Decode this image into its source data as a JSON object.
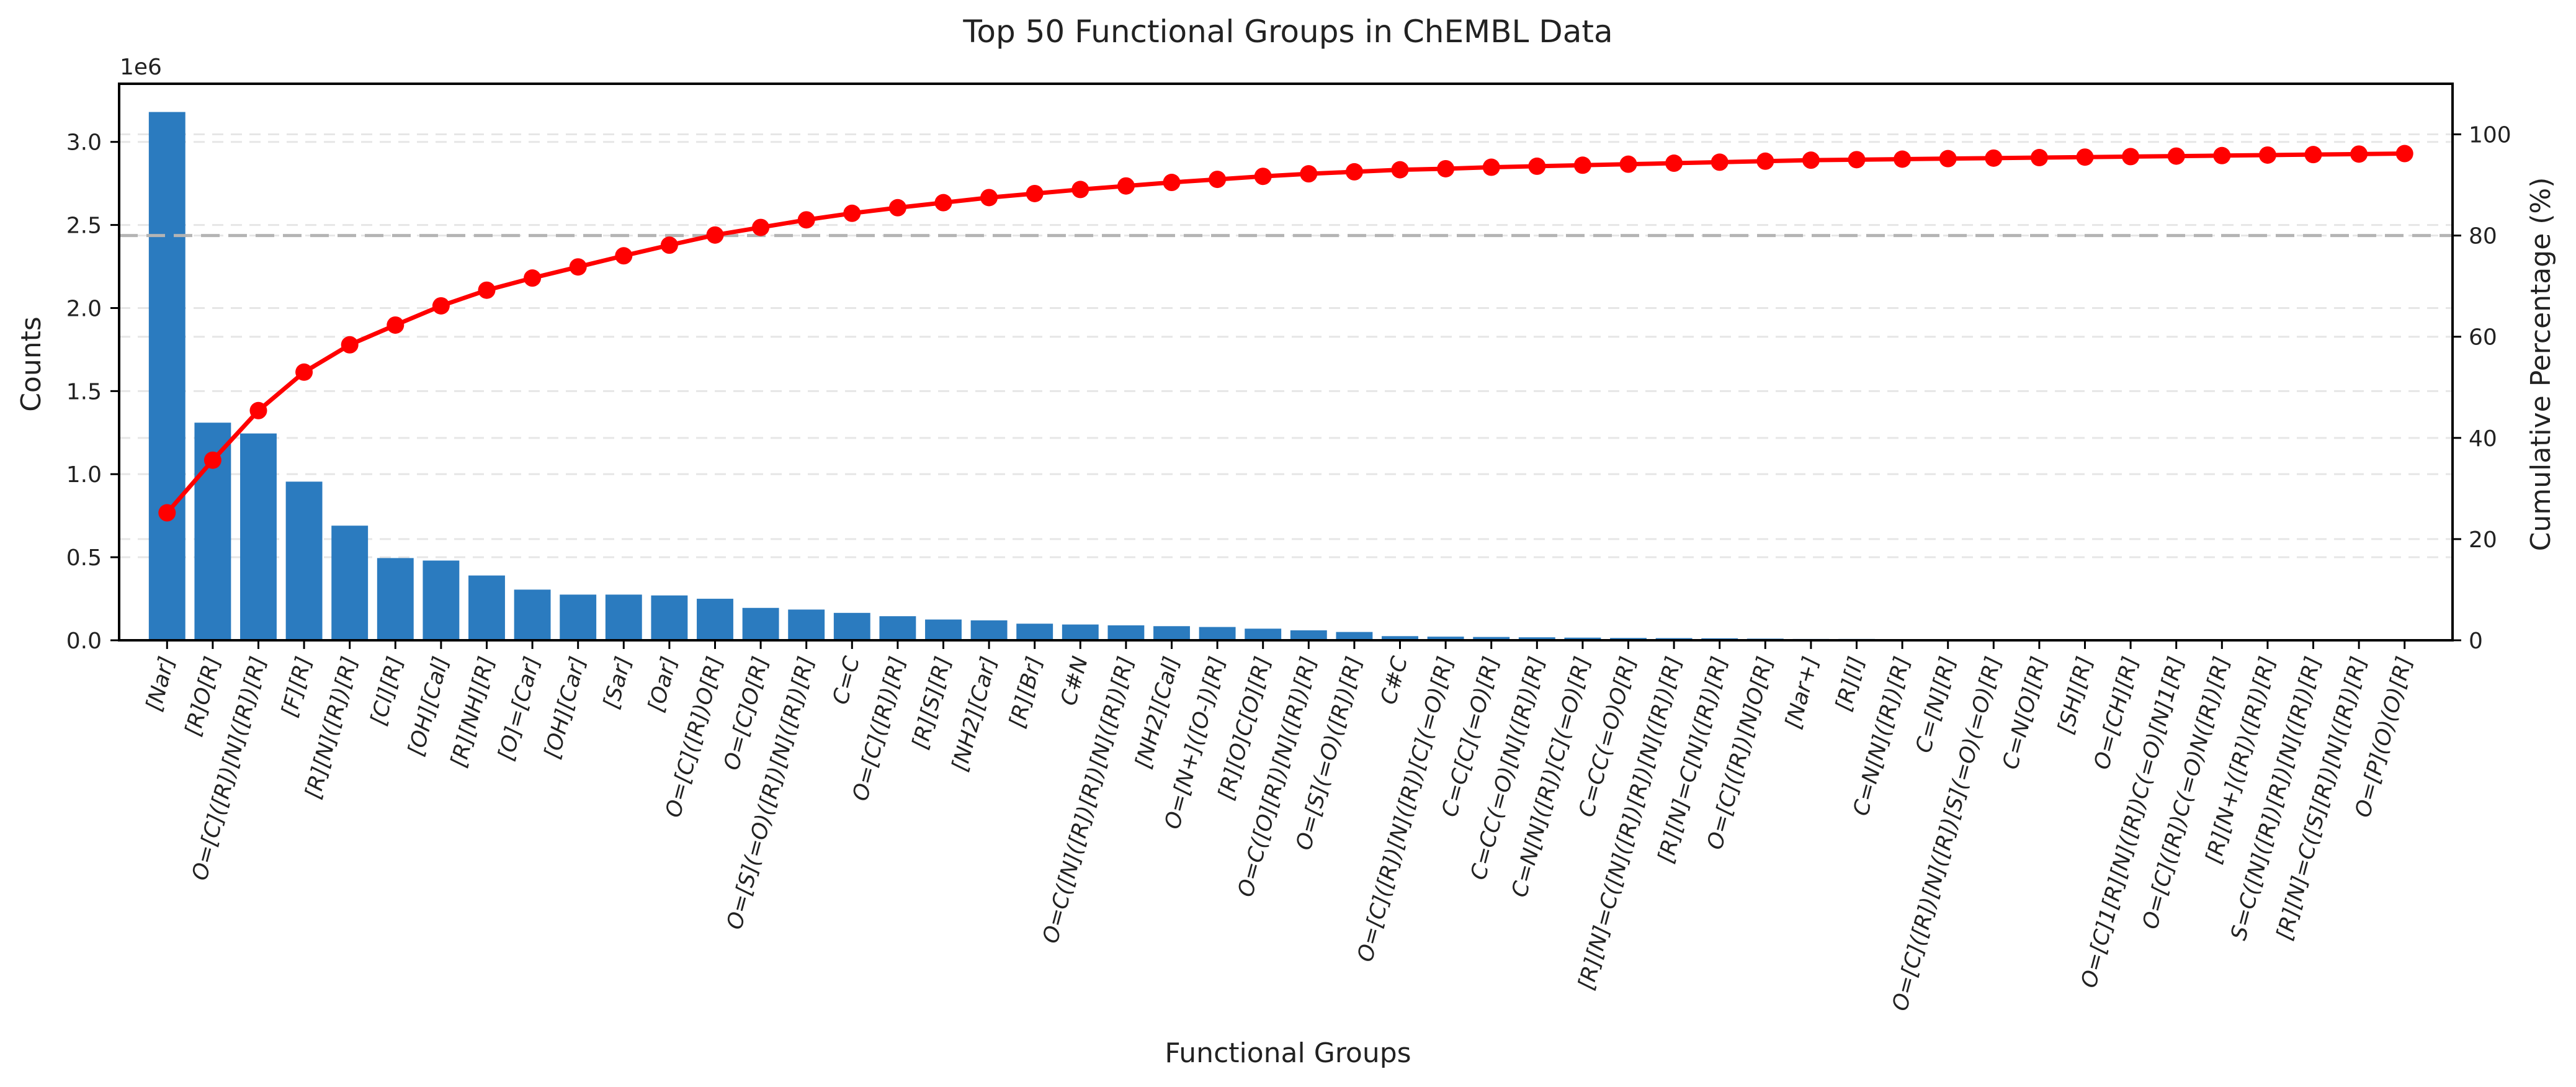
{
  "chart_data": {
    "type": "bar",
    "title": "Top 50 Functional Groups in ChEMBL Data",
    "xlabel": "Functional Groups",
    "ylabel": "Counts",
    "y2label": "Cumulative Percentage (%)",
    "y_offset_label": "1e6",
    "ylim": [
      0,
      3.35
    ],
    "y2lim": [
      0,
      110
    ],
    "yticks": [
      "0.0",
      "0.5",
      "1.0",
      "1.5",
      "2.0",
      "2.5",
      "3.0"
    ],
    "y2ticks": [
      "0",
      "20",
      "40",
      "60",
      "80",
      "100"
    ],
    "reference_line": 80,
    "grid": "horizontal dashed",
    "categories": [
      "[Nar]",
      "[R]O[R]",
      "O=[C]([R])[N]([R])[R]",
      "[F][R]",
      "[R][N]([R])[R]",
      "[Cl][R]",
      "[OH][Cal]",
      "[R][NH][R]",
      "[O]=[Car]",
      "[OH][Car]",
      "[Sar]",
      "[Oar]",
      "O=[C]([R])O[R]",
      "O=[C]O[R]",
      "O=[S](=O)([R])[N]([R])[R]",
      "C=C",
      "O=[C]([R])[R]",
      "[R][S][R]",
      "[NH2][Car]",
      "[R][Br]",
      "C#N",
      "O=C([N]([R])[R])[N]([R])[R]",
      "[NH2][Cal]",
      "O=[N+]([O-])[R]",
      "[R][O]C[O][R]",
      "O=C([O][R])[N]([R])[R]",
      "O=[S](=O)([R])[R]",
      "C#C",
      "O=[C]([R])[N]([R])[C](=O)[R]",
      "C=C[C](=O)[R]",
      "C=CC(=O)[N]([R])[R]",
      "C=N[N]([R])[C](=O)[R]",
      "C=CC(=O)O[R]",
      "[R][N]=C([N]([R])[R])[N]([R])[R]",
      "[R][N]=C[N]([R])[R]",
      "O=[C]([R])[N]O[R]",
      "[Nar+]",
      "[R][I]",
      "C=N[N]([R])[R]",
      "C=[N][R]",
      "O=[C]([R])[N]([R])[S](=O)(=O)[R]",
      "C=N[O][R]",
      "[SH][R]",
      "O=[CH][R]",
      "O=[C]1[R][N]([R])C(=O)[N]1[R]",
      "O=[C]([R])C(=O)N([R])[R]",
      "[R][N+]([R])([R])[R]",
      "S=C([N]([R])[R])[N]([R])[R]",
      "[R][N]=C([S][R])[N]([R])[R]",
      "O=[P](O)(O)[R]"
    ],
    "series": [
      {
        "type": "bar",
        "values": [
          3.18,
          1.31,
          1.245,
          0.955,
          0.69,
          0.495,
          0.48,
          0.39,
          0.305,
          0.275,
          0.275,
          0.27,
          0.25,
          0.195,
          0.185,
          0.165,
          0.145,
          0.125,
          0.12,
          0.1,
          0.095,
          0.09,
          0.085,
          0.08,
          0.07,
          0.06,
          0.05,
          0.025,
          0.022,
          0.02,
          0.018,
          0.016,
          0.014,
          0.013,
          0.012,
          0.01,
          0.008,
          0.008,
          0.007,
          0.007,
          0.006,
          0.006,
          0.006,
          0.005,
          0.005,
          0.005,
          0.005,
          0.004,
          0.004,
          0.004
        ]
      },
      {
        "type": "line",
        "axis": "right",
        "values": [
          25.2,
          35.6,
          45.4,
          53.0,
          58.4,
          62.3,
          66.1,
          69.2,
          71.6,
          73.8,
          76.0,
          78.1,
          80.1,
          81.6,
          83.1,
          84.4,
          85.5,
          86.5,
          87.5,
          88.3,
          89.1,
          89.8,
          90.5,
          91.1,
          91.7,
          92.2,
          92.6,
          93.0,
          93.2,
          93.5,
          93.7,
          93.9,
          94.1,
          94.3,
          94.5,
          94.7,
          94.9,
          95.0,
          95.1,
          95.2,
          95.3,
          95.4,
          95.5,
          95.6,
          95.7,
          95.8,
          95.9,
          96.0,
          96.1,
          96.2
        ]
      }
    ],
    "colors": {
      "bar": "#2b7bbf",
      "line": "#ff0000",
      "reference": "#b4b4b4",
      "grid": "#e6e6e6",
      "axis": "#000000"
    }
  }
}
